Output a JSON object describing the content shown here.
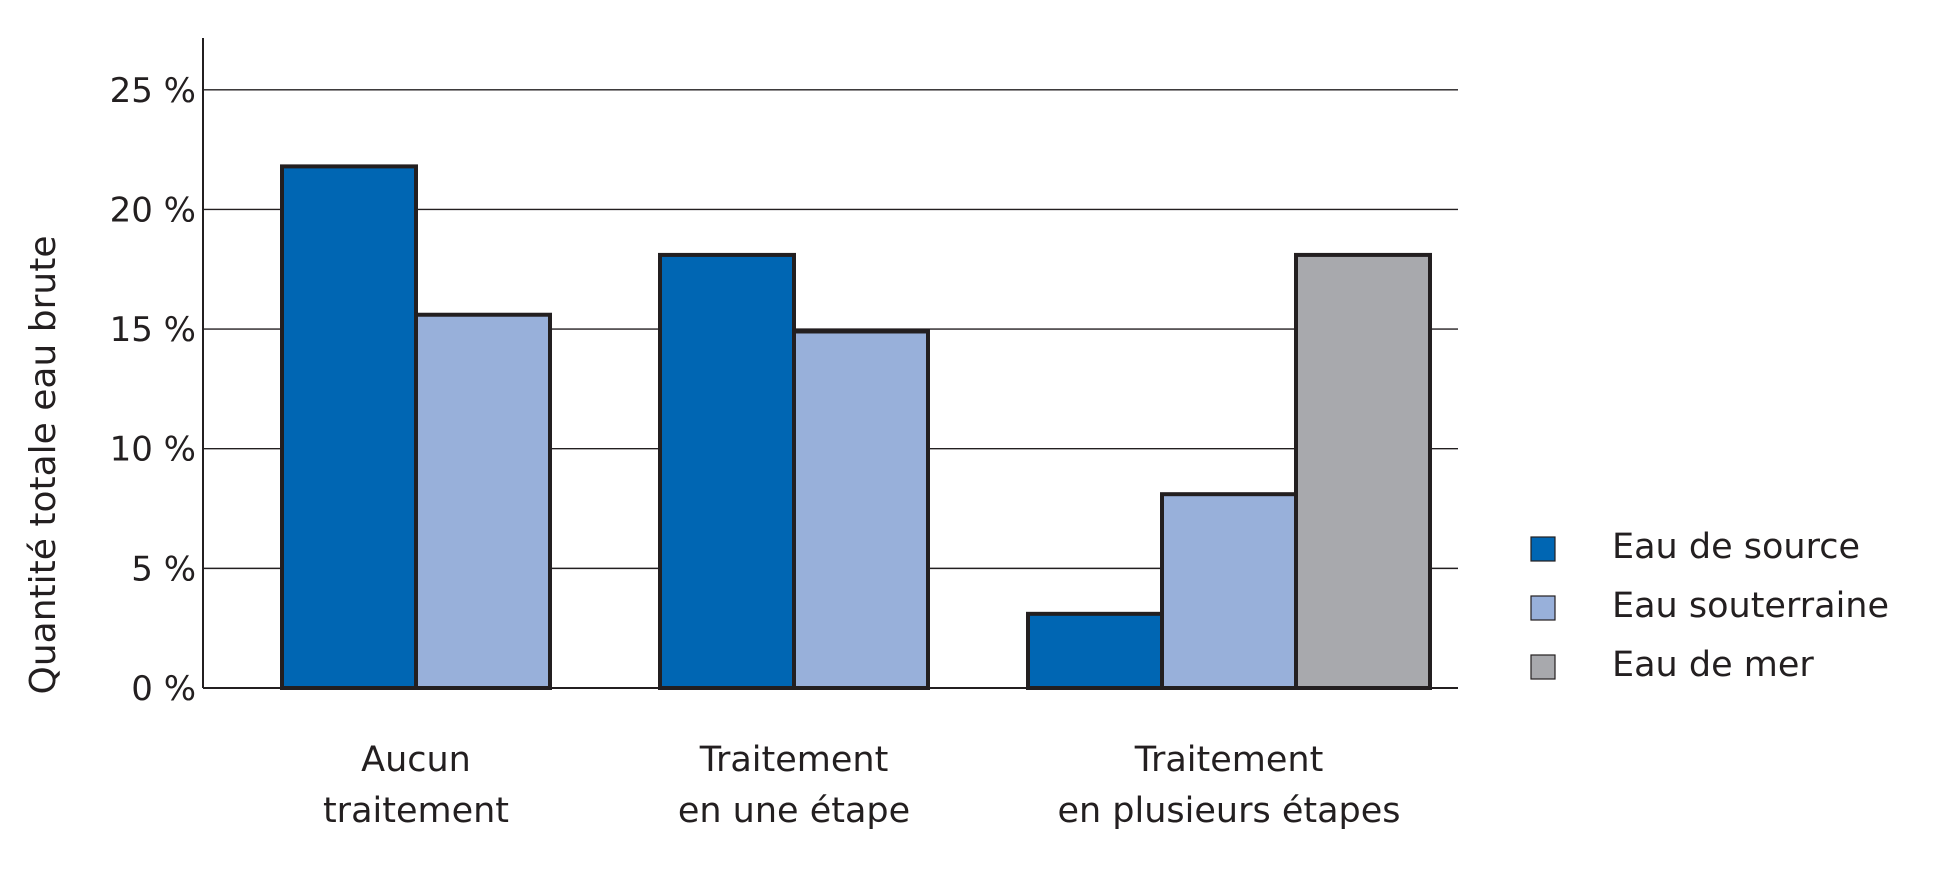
{
  "chart_data": {
    "type": "bar",
    "title": "",
    "xlabel": "",
    "ylabel": "Quantité totale eau brute",
    "ylim": [
      0,
      27.5
    ],
    "y_ticks": [
      0,
      5,
      10,
      15,
      20,
      25
    ],
    "y_tick_labels": [
      "0 %",
      "5 %",
      "10 %",
      "15 %",
      "20 %",
      "25 %"
    ],
    "grid": true,
    "legend_position": "right",
    "categories": [
      [
        "Aucun",
        "traitement"
      ],
      [
        "Traitement",
        "en une étape"
      ],
      [
        "Traitement",
        "en plusieurs étapes"
      ]
    ],
    "series": [
      {
        "name": "Eau de source",
        "color": "#0066b3",
        "values": [
          21.8,
          18.1,
          3.1
        ]
      },
      {
        "name": "Eau souterraine",
        "color": "#98b0da",
        "values": [
          15.6,
          14.9,
          8.1
        ]
      },
      {
        "name": "Eau de mer",
        "color": "#a8a9ad",
        "values": [
          null,
          null,
          18.1
        ]
      }
    ]
  }
}
